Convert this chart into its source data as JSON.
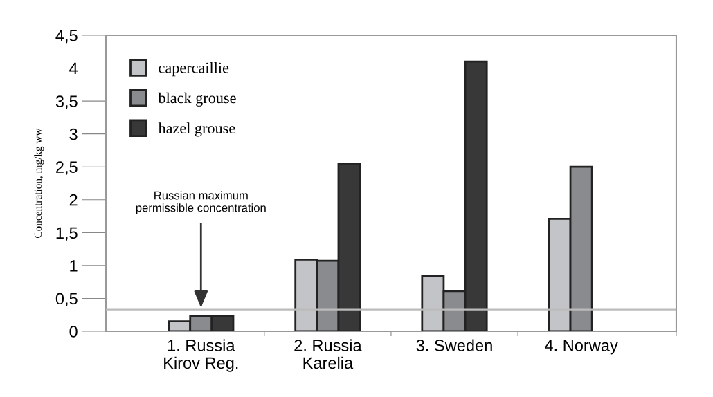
{
  "chart_data": {
    "type": "bar",
    "ylabel": "Concentration, mg/kg ww",
    "categories": [
      "1. Russia\nKirov Reg.",
      "2. Russia\nKarelia",
      "3. Sweden",
      "4. Norway"
    ],
    "series": [
      {
        "name": "capercaillie",
        "color": "#c3c4c7",
        "values": [
          0.15,
          1.09,
          0.84,
          1.71
        ]
      },
      {
        "name": "black grouse",
        "color": "#8a8b8e",
        "values": [
          0.23,
          1.07,
          0.61,
          2.5
        ]
      },
      {
        "name": "hazel grouse",
        "color": "#383838",
        "values": [
          0.23,
          2.55,
          4.1,
          null
        ]
      }
    ],
    "ylim": [
      0,
      4.5
    ],
    "yticks": [
      0,
      {
        "value": 0.5,
        "label": "0,5"
      },
      1,
      {
        "value": 1.5,
        "label": "1,5"
      },
      2,
      {
        "value": 2.5,
        "label": "2,5"
      },
      3,
      {
        "value": 3.5,
        "label": "3,5"
      },
      4,
      {
        "value": 4.5,
        "label": "4,5"
      }
    ],
    "ref_lines": [
      {
        "axis": "y",
        "value": 0.33,
        "label": "Russian maximum\npermissible concentration",
        "color": "#bbbbbb"
      }
    ],
    "legend": "top left",
    "grid": false
  }
}
